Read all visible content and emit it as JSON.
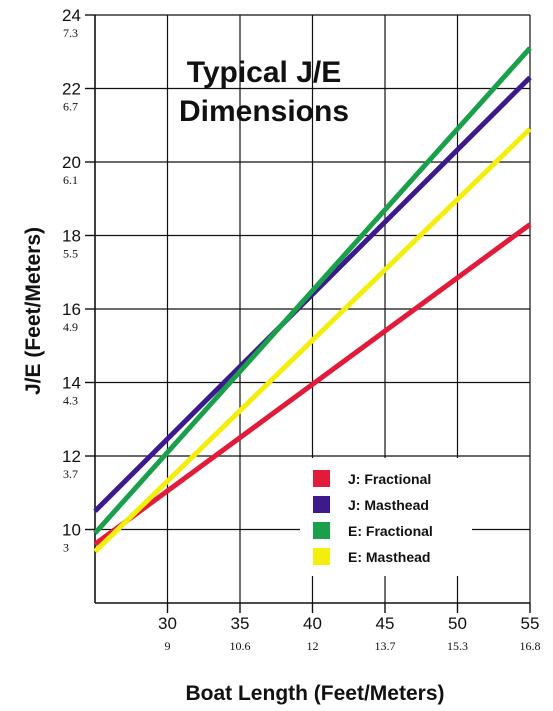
{
  "chart_data": {
    "type": "line",
    "title_lines": [
      "Typical J/E",
      "Dimensions"
    ],
    "xlabel": "Boat Length (Feet/Meters)",
    "ylabel": "J/E (Feet/Meters)",
    "xlim": [
      25,
      55
    ],
    "ylim": [
      8,
      24
    ],
    "grid": true,
    "legend_position": "bottom-right",
    "x_ticks": [
      {
        "major": "30",
        "minor": "9",
        "value": 30
      },
      {
        "major": "35",
        "minor": "10.6",
        "value": 35
      },
      {
        "major": "40",
        "minor": "12",
        "value": 40
      },
      {
        "major": "45",
        "minor": "13.7",
        "value": 45
      },
      {
        "major": "50",
        "minor": "15.3",
        "value": 50
      },
      {
        "major": "55",
        "minor": "16.8",
        "value": 55
      }
    ],
    "y_ticks": [
      {
        "major": "10",
        "minor": "3",
        "value": 10
      },
      {
        "major": "12",
        "minor": "3.7",
        "value": 12
      },
      {
        "major": "14",
        "minor": "4.3",
        "value": 14
      },
      {
        "major": "16",
        "minor": "4.9",
        "value": 16
      },
      {
        "major": "18",
        "minor": "5.5",
        "value": 18
      },
      {
        "major": "20",
        "minor": "6.1",
        "value": 20
      },
      {
        "major": "22",
        "minor": "6.7",
        "value": 22
      },
      {
        "major": "24",
        "minor": "7.3",
        "value": 24
      }
    ],
    "series": [
      {
        "name": "J:  Fractional",
        "color": "#e31b3b",
        "x": [
          25,
          55
        ],
        "values": [
          9.6,
          18.3
        ]
      },
      {
        "name": "J:  Masthead",
        "color": "#3d1a8c",
        "x": [
          25,
          55
        ],
        "values": [
          10.5,
          22.3
        ]
      },
      {
        "name": "E:  Fractional",
        "color": "#1aa04a",
        "x": [
          25,
          55
        ],
        "values": [
          9.9,
          23.1
        ]
      },
      {
        "name": "E:  Masthead",
        "color": "#f5ee0c",
        "x": [
          25,
          55
        ],
        "values": [
          9.4,
          20.9
        ]
      }
    ]
  }
}
